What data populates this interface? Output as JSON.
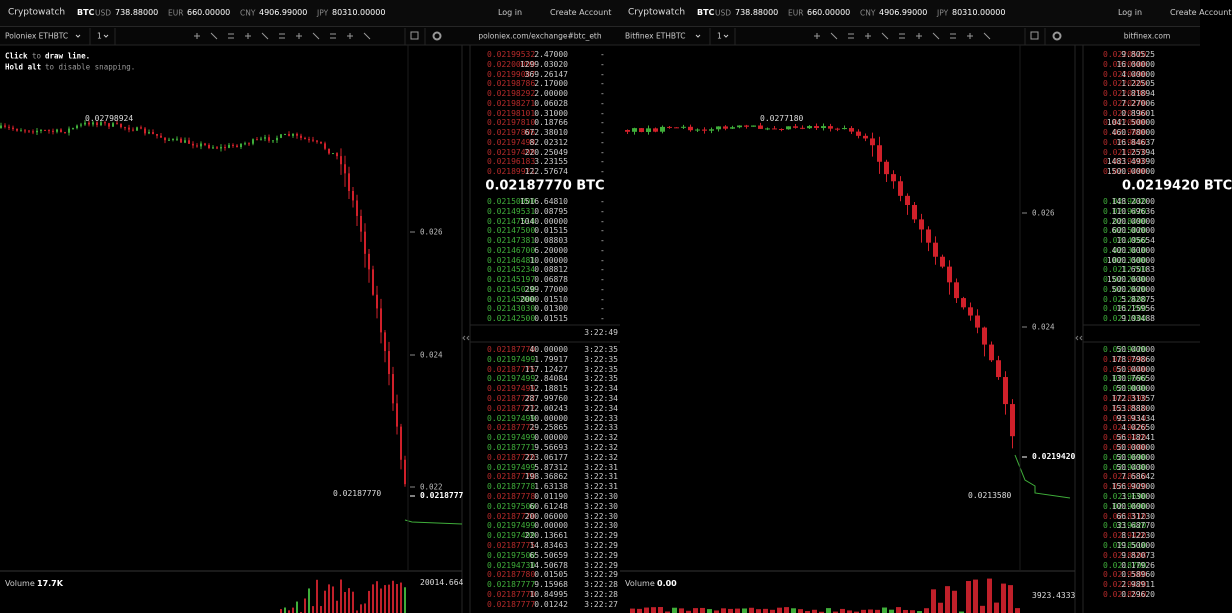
{
  "windows": [
    {
      "brand": "Cryptowatch",
      "base": "BTC",
      "quotes": [
        {
          "currency": "USD",
          "price": "738.88000"
        },
        {
          "currency": "EUR",
          "price": "660.00000"
        },
        {
          "currency": "CNY",
          "price": "4906.99000"
        },
        {
          "currency": "JPY",
          "price": "80310.00000"
        }
      ],
      "login": "Log in",
      "signup": "Create Account",
      "market": "Poloniex ETHBTC",
      "interval": "1",
      "source": "poloniex.com/exchange#btc_eth",
      "hint": [
        [
          "Click",
          "to",
          "draw line."
        ],
        [
          "Hold alt",
          "to disable snapping."
        ]
      ],
      "chart": {
        "high": "0.02798924",
        "low": "0.02187770",
        "ticks": [
          "0.026",
          "0.024",
          "0.022"
        ],
        "last": "0.0218777",
        "volume_label": "Volume",
        "volume_value": "17.7K",
        "volume_axis": "20014.664"
      },
      "book": {
        "asks": [
          [
            "0.02199532",
            "2.47000",
            "-"
          ],
          [
            "0.02200000",
            "1299.03020",
            "-"
          ],
          [
            "0.02199087",
            "369.26147",
            "-"
          ],
          [
            "0.02198786",
            "2.17000",
            "-"
          ],
          [
            "0.02198292",
            "2.00000",
            "-"
          ],
          [
            "0.02198271",
            "0.06028",
            "-"
          ],
          [
            "0.02198101",
            "0.31000",
            "-"
          ],
          [
            "0.02197810",
            "0.18766",
            "-"
          ],
          [
            "0.02197806",
            "672.38010",
            "-"
          ],
          [
            "0.02197499",
            "82.02312",
            "-"
          ],
          [
            "0.02197498",
            "220.25049",
            "-"
          ],
          [
            "0.02196183",
            "3.23155",
            "-"
          ],
          [
            "0.02189921",
            "122.57674",
            "-"
          ]
        ],
        "mid": "0.02187770 BTC",
        "bids": [
          [
            "0.02150000",
            "1516.64810",
            "-"
          ],
          [
            "0.02149531",
            "0.08795",
            "-"
          ],
          [
            "0.02147514",
            "1040.00000",
            "-"
          ],
          [
            "0.02147500",
            "0.01515",
            "-"
          ],
          [
            "0.02147381",
            "0.08803",
            "-"
          ],
          [
            "0.02146700",
            "6.20000",
            "-"
          ],
          [
            "0.02146481",
            "10.00000",
            "-"
          ],
          [
            "0.02145234",
            "0.08812",
            "-"
          ],
          [
            "0.02145197",
            "0.06878",
            "-"
          ],
          [
            "0.02145010",
            "299.77000",
            "-"
          ],
          [
            "0.02145000",
            "2000.01510",
            "-"
          ],
          [
            "0.02143030",
            "0.01300",
            "-"
          ],
          [
            "0.02142500",
            "0.01515",
            "-"
          ]
        ],
        "trades_header": "3:22:49",
        "trades": [
          [
            "0.02187770",
            "40.00000",
            "3:22:35",
            "sell"
          ],
          [
            "0.02197499",
            "1.79917",
            "3:22:35",
            "buy"
          ],
          [
            "0.02187775",
            "117.12427",
            "3:22:35",
            "sell"
          ],
          [
            "0.02197499",
            "2.84084",
            "3:22:35",
            "buy"
          ],
          [
            "0.02197499",
            "12.18815",
            "3:22:34",
            "sell"
          ],
          [
            "0.02187772",
            "287.99760",
            "3:22:34",
            "sell"
          ],
          [
            "0.02187772",
            "212.00243",
            "3:22:34",
            "sell"
          ],
          [
            "0.02197499",
            "10.00000",
            "3:22:33",
            "buy"
          ],
          [
            "0.02187771",
            "29.25865",
            "3:22:33",
            "sell"
          ],
          [
            "0.02197499",
            "0.00000",
            "3:22:32",
            "buy"
          ],
          [
            "0.02187771",
            "9.56693",
            "3:22:32",
            "buy"
          ],
          [
            "0.02187770",
            "223.06177",
            "3:22:32",
            "sell"
          ],
          [
            "0.02197499",
            "5.87312",
            "3:22:31",
            "buy"
          ],
          [
            "0.02187770",
            "198.36862",
            "3:22:31",
            "sell"
          ],
          [
            "0.02187778",
            "1.63138",
            "3:22:31",
            "buy"
          ],
          [
            "0.02187778",
            "0.01190",
            "3:22:30",
            "sell"
          ],
          [
            "0.02197500",
            "60.61248",
            "3:22:30",
            "buy"
          ],
          [
            "0.02187770",
            "200.06000",
            "3:22:30",
            "sell"
          ],
          [
            "0.02197499",
            "0.00000",
            "3:22:30",
            "buy"
          ],
          [
            "0.02197499",
            "220.13661",
            "3:22:29",
            "buy"
          ],
          [
            "0.02187775",
            "14.83463",
            "3:22:29",
            "sell"
          ],
          [
            "0.02197500",
            "65.50659",
            "3:22:29",
            "buy"
          ],
          [
            "0.02194730",
            "14.50678",
            "3:22:29",
            "buy"
          ],
          [
            "0.02187780",
            "0.01505",
            "3:22:29",
            "sell"
          ],
          [
            "0.02187777",
            "9.15968",
            "3:22:28",
            "buy"
          ],
          [
            "0.02187770",
            "10.84995",
            "3:22:28",
            "sell"
          ],
          [
            "0.02187777",
            "0.01242",
            "3:22:27",
            "sell"
          ]
        ]
      }
    },
    {
      "brand": "Cryptowatch",
      "base": "BTC",
      "quotes": [
        {
          "currency": "USD",
          "price": "738.88000"
        },
        {
          "currency": "EUR",
          "price": "660.00000"
        },
        {
          "currency": "CNY",
          "price": "4906.99000"
        },
        {
          "currency": "JPY",
          "price": "80310.00000"
        }
      ],
      "login": "Log in",
      "signup": "Create Account",
      "market": "Bitfinex ETHBTC",
      "interval": "1",
      "source": "bitfinex.com",
      "chart": {
        "high": "0.0277180",
        "low": "0.0213580",
        "ticks": [
          "0.026",
          "0.024"
        ],
        "last": "0.0219420",
        "volume_label": "Volume",
        "volume_value": "0.00",
        "volume_axis": "3923.4333"
      },
      "book": {
        "asks": [
          [
            "0.0220520",
            "9.80525"
          ],
          [
            "0.0220500",
            "16.00000"
          ],
          [
            "0.0220490",
            "4.00000"
          ],
          [
            "0.0220300",
            "1.22505"
          ],
          [
            "0.0220290",
            "1.81894"
          ],
          [
            "0.0220270",
            "7.27006"
          ],
          [
            "0.0220130",
            "0.89601"
          ],
          [
            "0.0220000",
            "1041.50000"
          ],
          [
            "0.0219800",
            "460.78000"
          ],
          [
            "0.0219640",
            "16.84637"
          ],
          [
            "0.0219570",
            "1.25394"
          ],
          [
            "0.0219500",
            "1483.49390"
          ],
          [
            "0.0219490",
            "1500.00000"
          ]
        ],
        "mid": "0.0219420 BTC",
        "bids": [
          [
            "0.0219430",
            "148.20200"
          ],
          [
            "0.0219420",
            "110.69636"
          ],
          [
            "0.0218490",
            "200.00000"
          ],
          [
            "0.0215020",
            "600.00000"
          ],
          [
            "0.0214960",
            "10.05654"
          ],
          [
            "0.0213610",
            "400.00000"
          ],
          [
            "0.0213500",
            "1000.00000"
          ],
          [
            "0.0212700",
            "1.65183"
          ],
          [
            "0.0212630",
            "1500.00000"
          ],
          [
            "0.0212620",
            "500.00000"
          ],
          [
            "0.0212600",
            "5.82875"
          ],
          [
            "0.0212200",
            "16.15956"
          ],
          [
            "0.0211900",
            "9.03488"
          ]
        ],
        "trades": [
          [
            "0.0219420",
            "50.00000",
            "buy"
          ],
          [
            "0.0219590",
            "178.79860",
            "sell"
          ],
          [
            "0.0219440",
            "50.00000",
            "sell"
          ],
          [
            "0.0219690",
            "130.76650",
            "buy"
          ],
          [
            "0.0219030",
            "50.00000",
            "buy"
          ],
          [
            "0.0218590",
            "172.31357",
            "sell"
          ],
          [
            "0.0218510",
            "153.88800",
            "sell"
          ],
          [
            "0.0219410",
            "93.93434",
            "sell"
          ],
          [
            "0.0219420",
            "4.02650",
            "sell"
          ],
          [
            "0.0219420",
            "56.18241",
            "sell"
          ],
          [
            "0.0219380",
            "50.00000",
            "sell"
          ],
          [
            "0.0219690",
            "50.00000",
            "buy"
          ],
          [
            "0.0219430",
            "50.00000",
            "buy"
          ],
          [
            "0.0218510",
            "7.68642",
            "sell"
          ],
          [
            "0.0219420",
            "156.90900",
            "sell"
          ],
          [
            "0.0219690",
            "3.13000",
            "buy"
          ],
          [
            "0.0219690",
            "100.00000",
            "buy"
          ],
          [
            "0.0218510",
            "66.31230",
            "sell"
          ],
          [
            "0.0219420",
            "33.68770",
            "buy"
          ],
          [
            "0.0219420",
            "8.12230",
            "sell"
          ],
          [
            "0.0218510",
            "19.50000",
            "buy"
          ],
          [
            "0.0218508",
            "9.82073",
            "sell"
          ],
          [
            "0.0218700",
            "0.17926",
            "buy"
          ],
          [
            "0.0219580",
            "0.58960",
            "sell"
          ],
          [
            "0.0219420",
            "2.98911",
            "sell"
          ],
          [
            "0.0218510",
            "0.29620",
            "sell"
          ]
        ]
      }
    }
  ]
}
